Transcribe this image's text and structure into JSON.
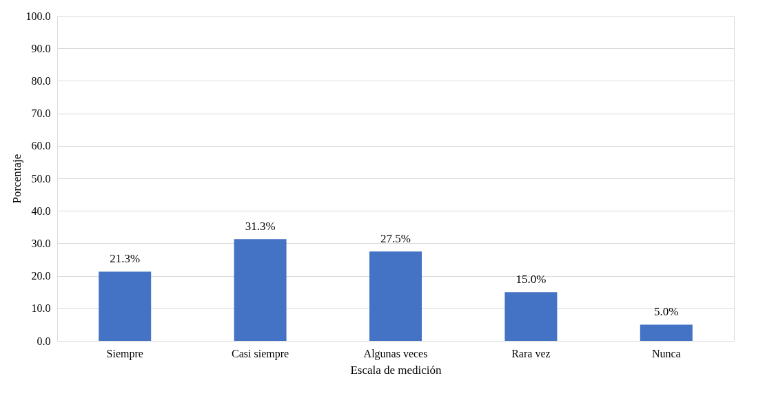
{
  "chart_data": {
    "type": "bar",
    "xlabel": "Escala de medición",
    "ylabel": "Porcentaje",
    "categories": [
      "Siempre",
      "Casi siempre",
      "Algunas veces",
      "Rara vez",
      "Nunca"
    ],
    "values": [
      21.3,
      31.3,
      27.5,
      15.0,
      5.0
    ],
    "color": "#4472c4",
    "value_labels": [
      "21.3%",
      "31.3%",
      "27.5%",
      "15.0%",
      "5.0%"
    ],
    "ylim": [
      0,
      100
    ],
    "yticks": [
      {
        "value": 0,
        "label": "0.0"
      },
      {
        "value": 10,
        "label": "10.0"
      },
      {
        "value": 20,
        "label": "20.0"
      },
      {
        "value": 30,
        "label": "30.0"
      },
      {
        "value": 40,
        "label": "40.0"
      },
      {
        "value": 50,
        "label": "50.0"
      },
      {
        "value": 60,
        "label": "60.0"
      },
      {
        "value": 70,
        "label": "70.0"
      },
      {
        "value": 80,
        "label": "80.0"
      },
      {
        "value": 90,
        "label": "90.0"
      },
      {
        "value": 100,
        "label": "100.0"
      }
    ],
    "grid": "y"
  }
}
